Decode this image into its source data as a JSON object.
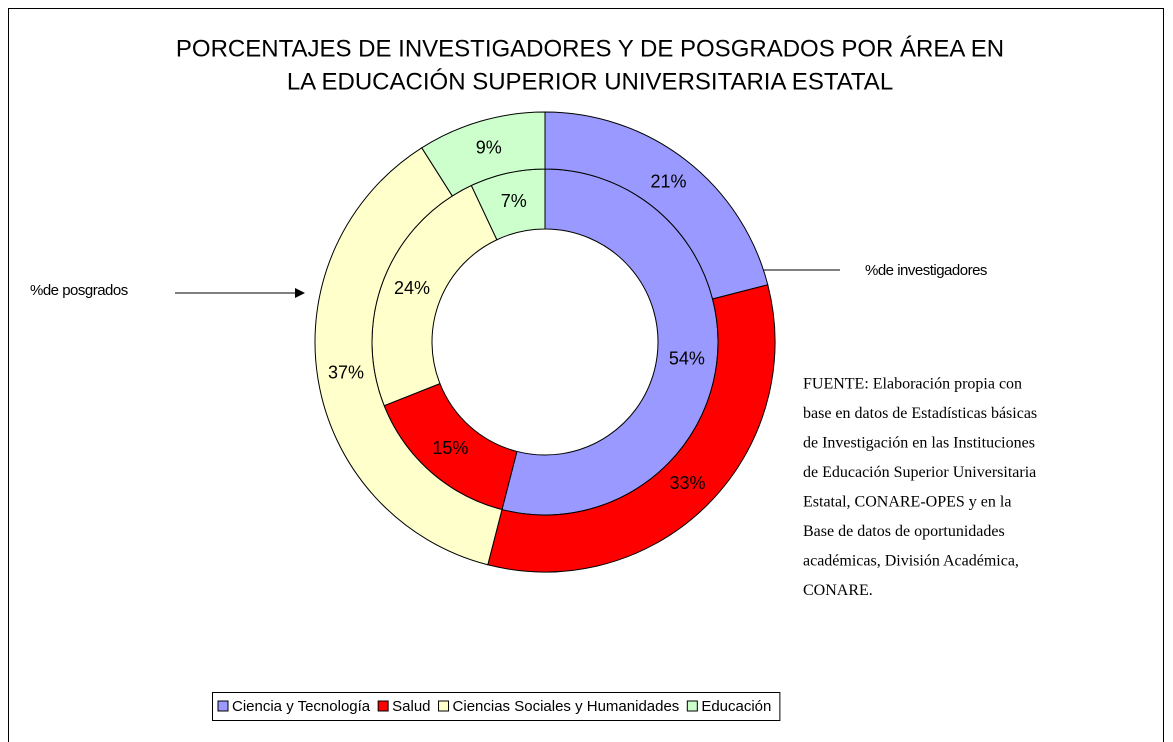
{
  "chart_data": {
    "type": "doughnut",
    "title": [
      "PORCENTAJES DE INVESTIGADORES Y DE POSGRADOS POR ÁREA EN",
      "LA EDUCACIÓN SUPERIOR UNIVERSITARIA ESTATAL"
    ],
    "categories": [
      "Ciencia y Tecnología",
      "Salud",
      "Ciencias Sociales y Humanidades",
      "Educación"
    ],
    "colors": [
      "#9999ff",
      "#ff0000",
      "#ffffcc",
      "#ccffcc"
    ],
    "series": [
      {
        "name": "%de investigadores",
        "values": [
          54,
          15,
          24,
          7
        ],
        "value_labels": [
          "54%",
          "15%",
          "24%",
          "7%"
        ]
      },
      {
        "name": "%de posgrados",
        "values": [
          21,
          33,
          37,
          9
        ],
        "value_labels": [
          "21%",
          "33%",
          "37%",
          "9%"
        ]
      }
    ],
    "source": [
      "FUENTE: Elaboración propia con",
      "base en datos de  Estadísticas básicas",
      "de Investigación en las Instituciones",
      "de Educación Superior Universitaria",
      "Estatal, CONARE-OPES y en la",
      "Base de datos de oportunidades",
      "académicas, División Académica,",
      "CONARE."
    ],
    "legend": "bottom"
  }
}
